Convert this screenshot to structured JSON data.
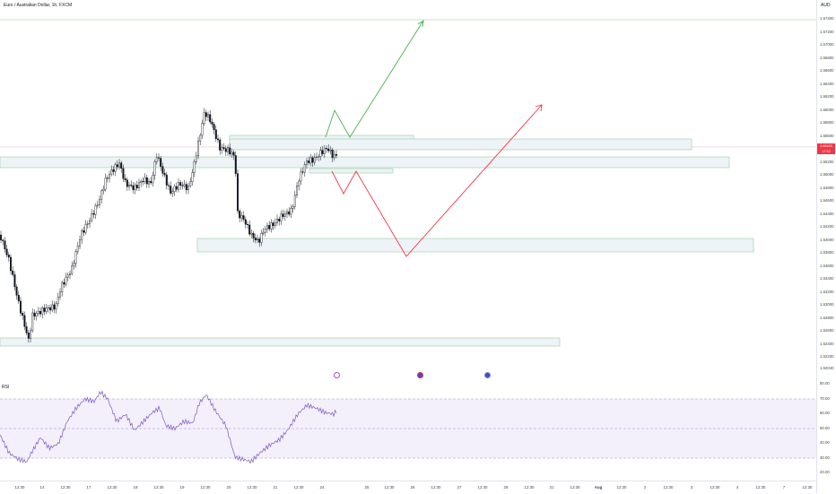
{
  "header": {
    "symbol_title": "Euro / Australian Dollar, 1h, FXCM",
    "currency": "AUD"
  },
  "price_axis": {
    "ticks": [
      "1.67400",
      "1.67200",
      "1.67000",
      "1.66800",
      "1.66600",
      "1.66400",
      "1.66200",
      "1.66000",
      "1.65800",
      "1.65600",
      "1.65400",
      "1.65200",
      "1.65000",
      "1.64800",
      "1.64600",
      "1.64400",
      "1.64200",
      "1.64000",
      "1.63800",
      "1.63600",
      "1.63400",
      "1.63200",
      "1.63000",
      "1.62800",
      "1.62600",
      "1.62400",
      "1.62200",
      "1.62040"
    ],
    "current_price": "1.65425",
    "countdown": "17:52"
  },
  "rsi": {
    "label": "RSI",
    "ticks": [
      "80.00",
      "70.00",
      "60.00",
      "50.00",
      "40.00",
      "30.00",
      "20.00"
    ],
    "upper_band": 70,
    "middle_band": 50,
    "lower_band": 30
  },
  "time_axis": {
    "ticks": [
      "12:30",
      "14",
      "12:30",
      "17",
      "12:30",
      "18",
      "12:30",
      "19",
      "12:30",
      "20",
      "12:30",
      "21",
      "12:30",
      "24",
      "25",
      "12:30",
      "26",
      "12:30",
      "27",
      "12:30",
      "28",
      "12:30",
      "31",
      "12:30",
      "Aug",
      "12:30",
      "2",
      "12:30",
      "3",
      "12:30",
      "4",
      "12:30",
      "7",
      "12:30"
    ]
  },
  "events": [
    "event-icon-1",
    "event-icon-2",
    "event-icon-3"
  ],
  "colors": {
    "up_arrow": "#4caf50",
    "down_arrow": "#f23645",
    "zone_border": "#9bcba0",
    "zone_fill": "#eef3f7",
    "rsi_line": "#7e57c2",
    "rsi_band": "#f3f0fb",
    "candle": "#131722"
  }
}
